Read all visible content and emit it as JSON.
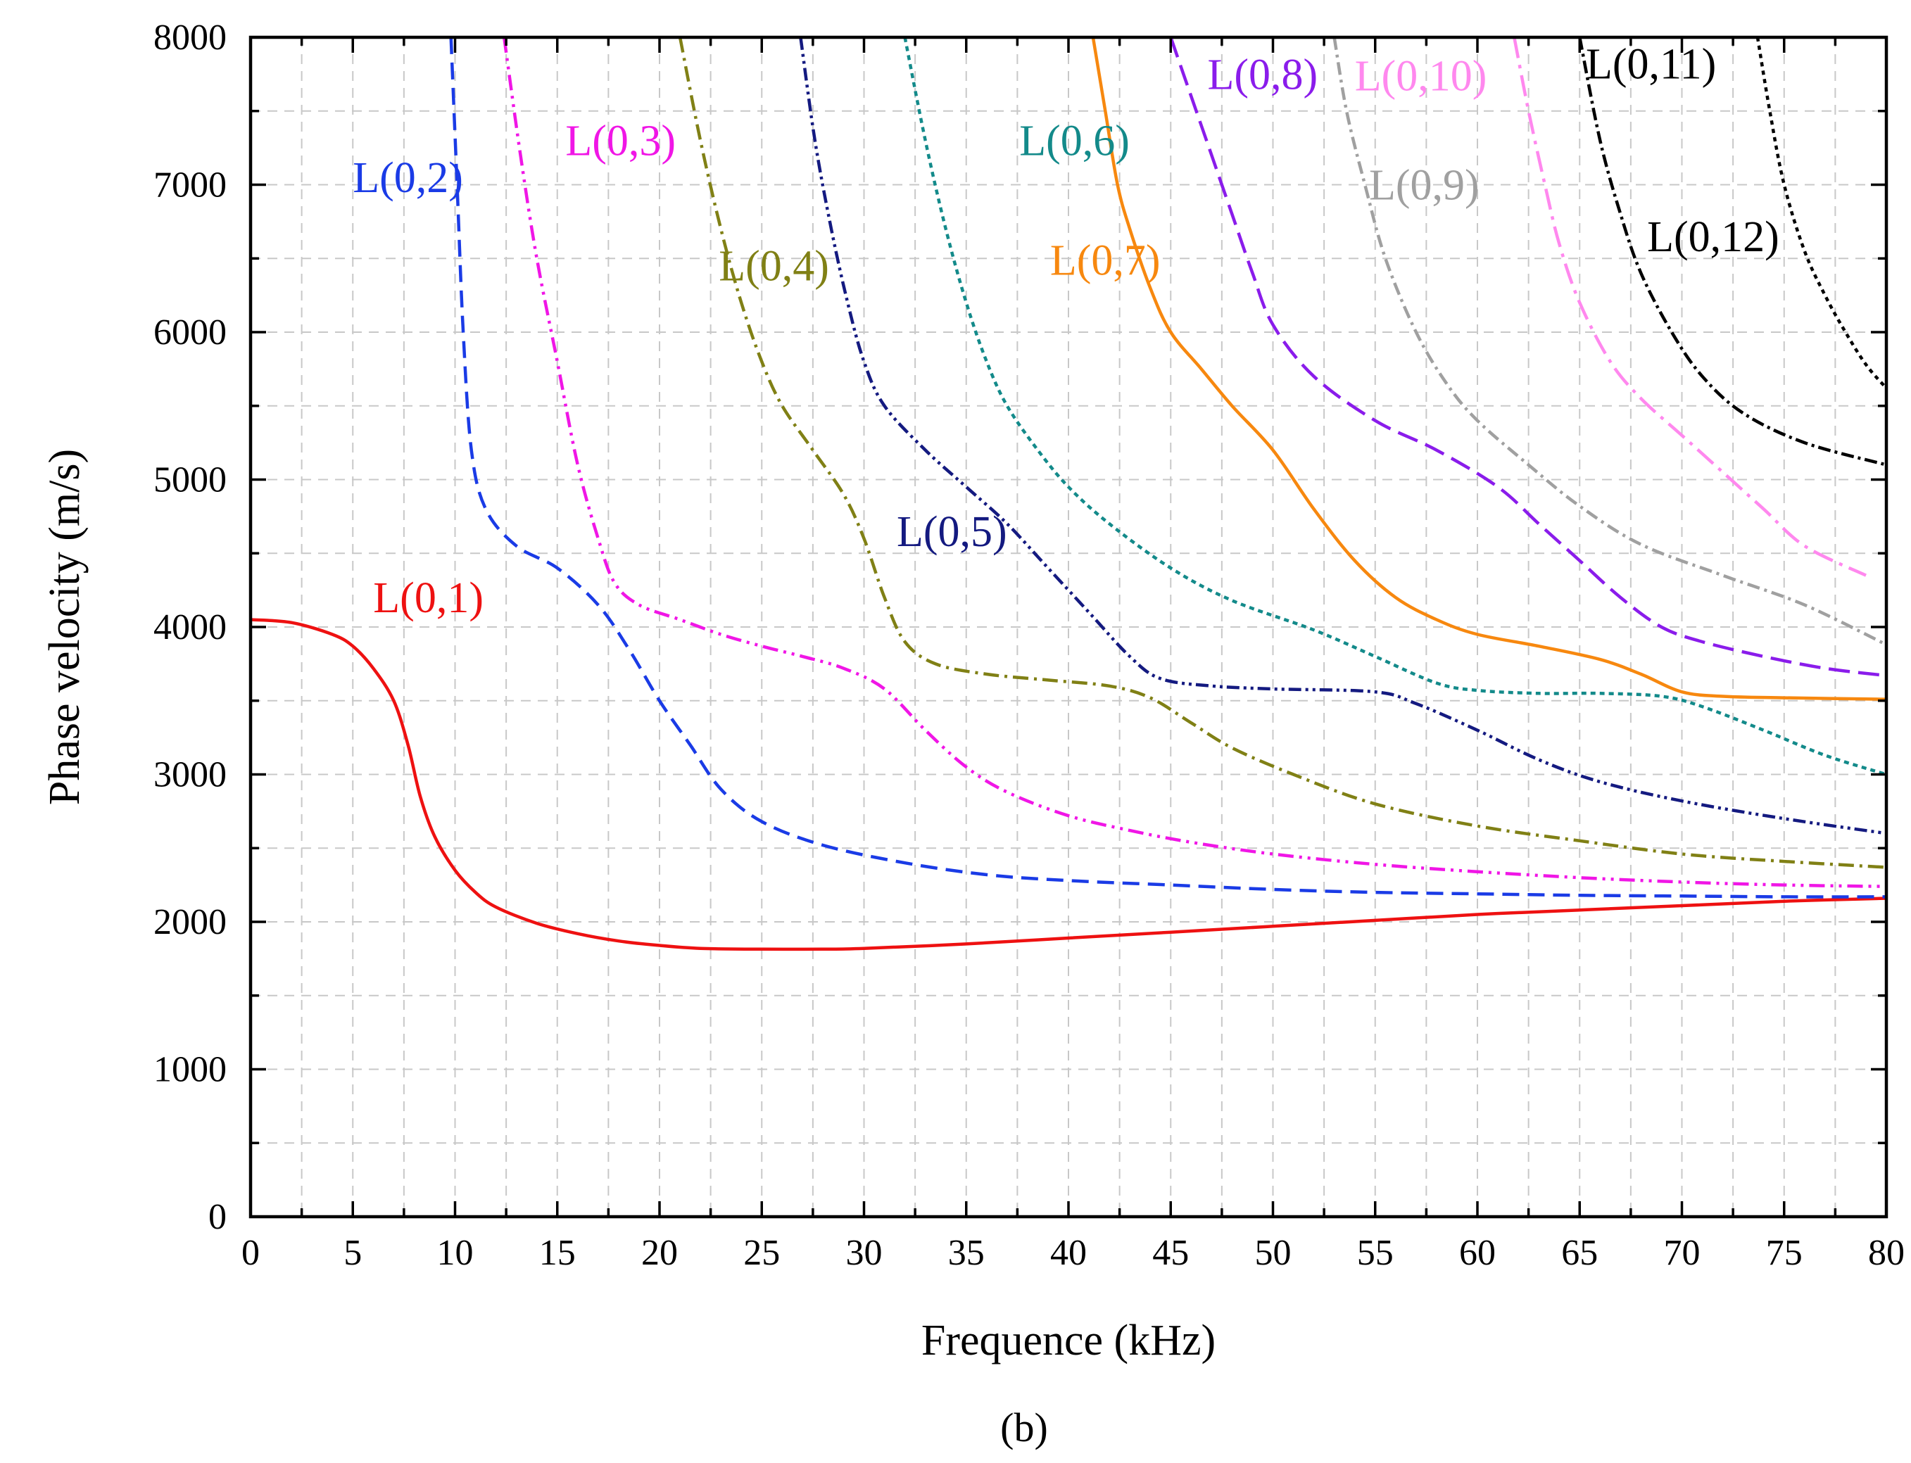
{
  "caption": {
    "text": "(b)"
  },
  "chart_data": {
    "type": "line",
    "title": "",
    "xlabel": "Frequence (kHz)",
    "ylabel": "Phase  velocity (m/s)",
    "xlim": [
      0,
      80
    ],
    "ylim": [
      0,
      8000
    ],
    "xticks": [
      0,
      5,
      10,
      15,
      20,
      25,
      30,
      35,
      40,
      45,
      50,
      55,
      60,
      65,
      70,
      75,
      80
    ],
    "yticks": [
      0,
      1000,
      2000,
      3000,
      4000,
      5000,
      6000,
      7000,
      8000
    ],
    "grid": true,
    "legend": "inline labels",
    "series": [
      {
        "name": "L(0,1)",
        "color": "#ee1111",
        "dash": "",
        "label_at": [
          6,
          4100
        ],
        "points": [
          [
            0,
            4050
          ],
          [
            2,
            4030
          ],
          [
            4,
            3950
          ],
          [
            5,
            3870
          ],
          [
            6,
            3720
          ],
          [
            7,
            3500
          ],
          [
            7.7,
            3200
          ],
          [
            8.3,
            2850
          ],
          [
            9,
            2580
          ],
          [
            10,
            2350
          ],
          [
            11,
            2200
          ],
          [
            12,
            2100
          ],
          [
            14,
            1990
          ],
          [
            16,
            1920
          ],
          [
            18,
            1870
          ],
          [
            20,
            1840
          ],
          [
            22,
            1820
          ],
          [
            25,
            1815
          ],
          [
            28,
            1815
          ],
          [
            30,
            1820
          ],
          [
            35,
            1850
          ],
          [
            40,
            1890
          ],
          [
            45,
            1930
          ],
          [
            50,
            1970
          ],
          [
            55,
            2010
          ],
          [
            60,
            2050
          ],
          [
            65,
            2080
          ],
          [
            70,
            2110
          ],
          [
            75,
            2140
          ],
          [
            80,
            2160
          ]
        ]
      },
      {
        "name": "L(0,2)",
        "color": "#1a3be6",
        "dash": "24 12",
        "label_at": [
          5,
          6950
        ],
        "points": [
          [
            9.8,
            8000
          ],
          [
            10.1,
            7000
          ],
          [
            10.4,
            6000
          ],
          [
            10.8,
            5200
          ],
          [
            11.5,
            4800
          ],
          [
            13,
            4550
          ],
          [
            15,
            4400
          ],
          [
            17,
            4150
          ],
          [
            18.5,
            3850
          ],
          [
            20,
            3500
          ],
          [
            21.5,
            3200
          ],
          [
            23,
            2900
          ],
          [
            25,
            2680
          ],
          [
            28,
            2520
          ],
          [
            32,
            2400
          ],
          [
            36,
            2320
          ],
          [
            40,
            2280
          ],
          [
            45,
            2250
          ],
          [
            50,
            2220
          ],
          [
            55,
            2200
          ],
          [
            60,
            2190
          ],
          [
            65,
            2180
          ],
          [
            70,
            2175
          ],
          [
            75,
            2170
          ],
          [
            80,
            2170
          ]
        ]
      },
      {
        "name": "L(0,3)",
        "color": "#f016e6",
        "dash": "22 8 4 8 4 8",
        "label_at": [
          15.4,
          7200
        ],
        "points": [
          [
            12.4,
            8000
          ],
          [
            13.2,
            7200
          ],
          [
            14,
            6500
          ],
          [
            15,
            5800
          ],
          [
            16,
            5100
          ],
          [
            17,
            4600
          ],
          [
            17.8,
            4300
          ],
          [
            19,
            4150
          ],
          [
            21,
            4050
          ],
          [
            23,
            3950
          ],
          [
            25,
            3870
          ],
          [
            27,
            3800
          ],
          [
            29,
            3720
          ],
          [
            31,
            3580
          ],
          [
            33,
            3300
          ],
          [
            35,
            3050
          ],
          [
            37,
            2880
          ],
          [
            40,
            2720
          ],
          [
            43,
            2620
          ],
          [
            46,
            2540
          ],
          [
            50,
            2460
          ],
          [
            55,
            2390
          ],
          [
            60,
            2340
          ],
          [
            65,
            2300
          ],
          [
            70,
            2270
          ],
          [
            75,
            2250
          ],
          [
            80,
            2240
          ]
        ]
      },
      {
        "name": "L(0,4)",
        "color": "#808015",
        "dash": "22 8 4 8",
        "label_at": [
          22.9,
          6350
        ],
        "points": [
          [
            21,
            8000
          ],
          [
            22,
            7300
          ],
          [
            23,
            6700
          ],
          [
            24,
            6200
          ],
          [
            25,
            5800
          ],
          [
            26,
            5500
          ],
          [
            27.5,
            5200
          ],
          [
            29,
            4900
          ],
          [
            30,
            4600
          ],
          [
            31,
            4200
          ],
          [
            32,
            3900
          ],
          [
            33.5,
            3750
          ],
          [
            36,
            3680
          ],
          [
            39,
            3640
          ],
          [
            42,
            3600
          ],
          [
            44,
            3520
          ],
          [
            46,
            3350
          ],
          [
            48,
            3180
          ],
          [
            51,
            3000
          ],
          [
            55,
            2800
          ],
          [
            60,
            2650
          ],
          [
            65,
            2550
          ],
          [
            70,
            2460
          ],
          [
            75,
            2410
          ],
          [
            80,
            2370
          ]
        ]
      },
      {
        "name": "L(0,5)",
        "color": "#141a80",
        "dash": "18 6 4 6 4 6",
        "label_at": [
          31.6,
          4550
        ],
        "points": [
          [
            26.9,
            8000
          ],
          [
            27.6,
            7300
          ],
          [
            28.4,
            6700
          ],
          [
            29.2,
            6200
          ],
          [
            30,
            5800
          ],
          [
            31,
            5500
          ],
          [
            33,
            5200
          ],
          [
            35,
            4950
          ],
          [
            37,
            4700
          ],
          [
            39,
            4400
          ],
          [
            41,
            4100
          ],
          [
            43,
            3800
          ],
          [
            44.5,
            3650
          ],
          [
            47,
            3600
          ],
          [
            50,
            3580
          ],
          [
            55,
            3560
          ],
          [
            57,
            3480
          ],
          [
            60,
            3300
          ],
          [
            63,
            3100
          ],
          [
            66,
            2950
          ],
          [
            70,
            2820
          ],
          [
            75,
            2700
          ],
          [
            80,
            2600
          ]
        ]
      },
      {
        "name": "L(0,6)",
        "color": "#138a8a",
        "dash": "7 6",
        "label_at": [
          37.6,
          7200
        ],
        "points": [
          [
            32,
            8000
          ],
          [
            33,
            7300
          ],
          [
            34,
            6700
          ],
          [
            35,
            6200
          ],
          [
            36,
            5800
          ],
          [
            37,
            5500
          ],
          [
            38.5,
            5200
          ],
          [
            40,
            4950
          ],
          [
            42,
            4700
          ],
          [
            45,
            4400
          ],
          [
            48,
            4180
          ],
          [
            52,
            3980
          ],
          [
            55,
            3800
          ],
          [
            58,
            3620
          ],
          [
            60,
            3570
          ],
          [
            63,
            3550
          ],
          [
            66,
            3550
          ],
          [
            69,
            3530
          ],
          [
            71,
            3460
          ],
          [
            74,
            3300
          ],
          [
            77,
            3130
          ],
          [
            80,
            3000
          ]
        ]
      },
      {
        "name": "L(0,7)",
        "color": "#f7880f",
        "dash": "",
        "label_at": [
          39.1,
          6390
        ],
        "points": [
          [
            41.2,
            8000
          ],
          [
            41.8,
            7500
          ],
          [
            42.4,
            7000
          ],
          [
            43,
            6700
          ],
          [
            44,
            6300
          ],
          [
            45,
            6000
          ],
          [
            46.5,
            5750
          ],
          [
            48,
            5500
          ],
          [
            50,
            5200
          ],
          [
            52,
            4800
          ],
          [
            54,
            4450
          ],
          [
            56,
            4200
          ],
          [
            58,
            4050
          ],
          [
            60,
            3950
          ],
          [
            63,
            3870
          ],
          [
            66,
            3780
          ],
          [
            68,
            3680
          ],
          [
            70,
            3560
          ],
          [
            72,
            3530
          ],
          [
            75,
            3520
          ],
          [
            80,
            3510
          ]
        ]
      },
      {
        "name": "L(0,8)",
        "color": "#8a1ceb",
        "dash": "30 12",
        "label_at": [
          46.8,
          7650
        ],
        "points": [
          [
            45,
            8000
          ],
          [
            46,
            7600
          ],
          [
            47,
            7200
          ],
          [
            48,
            6800
          ],
          [
            49,
            6400
          ],
          [
            50,
            6050
          ],
          [
            52,
            5700
          ],
          [
            55,
            5400
          ],
          [
            58,
            5200
          ],
          [
            61,
            4950
          ],
          [
            63,
            4700
          ],
          [
            65,
            4450
          ],
          [
            67,
            4200
          ],
          [
            69,
            4000
          ],
          [
            71,
            3900
          ],
          [
            74,
            3800
          ],
          [
            77,
            3720
          ],
          [
            80,
            3670
          ]
        ]
      },
      {
        "name": "L(0,9)",
        "color": "#a0a0a0",
        "dash": "18 7 4 7",
        "label_at": [
          54.7,
          6900
        ],
        "points": [
          [
            53,
            8000
          ],
          [
            53.6,
            7500
          ],
          [
            54.5,
            7000
          ],
          [
            55.5,
            6500
          ],
          [
            57,
            6000
          ],
          [
            58.5,
            5650
          ],
          [
            60,
            5400
          ],
          [
            62.5,
            5100
          ],
          [
            65,
            4820
          ],
          [
            68,
            4560
          ],
          [
            72,
            4350
          ],
          [
            76,
            4150
          ],
          [
            80,
            3880
          ]
        ]
      },
      {
        "name": "L(0,10)",
        "color": "#ff88ee",
        "dash": "30 10 5 10",
        "label_at": [
          54,
          7640
        ],
        "points": [
          [
            61.8,
            8000
          ],
          [
            62.5,
            7500
          ],
          [
            63.3,
            7000
          ],
          [
            64,
            6600
          ],
          [
            65,
            6200
          ],
          [
            66.5,
            5800
          ],
          [
            68,
            5550
          ],
          [
            70,
            5300
          ],
          [
            72,
            5050
          ],
          [
            74,
            4800
          ],
          [
            76,
            4550
          ],
          [
            79,
            4350
          ]
        ]
      },
      {
        "name": "L(0,11)",
        "color": "#000000",
        "dash": "6 6",
        "label_at": [
          65.3,
          7720
        ],
        "points": [
          [
            73.7,
            8000
          ],
          [
            74.3,
            7500
          ],
          [
            75,
            7000
          ],
          [
            76,
            6550
          ],
          [
            77,
            6250
          ],
          [
            78,
            6000
          ],
          [
            79,
            5780
          ],
          [
            80,
            5620
          ]
        ]
      },
      {
        "name": "L(0,12)",
        "color": "#000000",
        "dash": "18 6 4 6",
        "label_at": [
          68.3,
          6550
        ],
        "points": [
          [
            65,
            8000
          ],
          [
            66,
            7300
          ],
          [
            67,
            6800
          ],
          [
            68,
            6400
          ],
          [
            69.5,
            6000
          ],
          [
            71,
            5700
          ],
          [
            73,
            5450
          ],
          [
            76,
            5250
          ],
          [
            80,
            5100
          ]
        ]
      }
    ]
  }
}
